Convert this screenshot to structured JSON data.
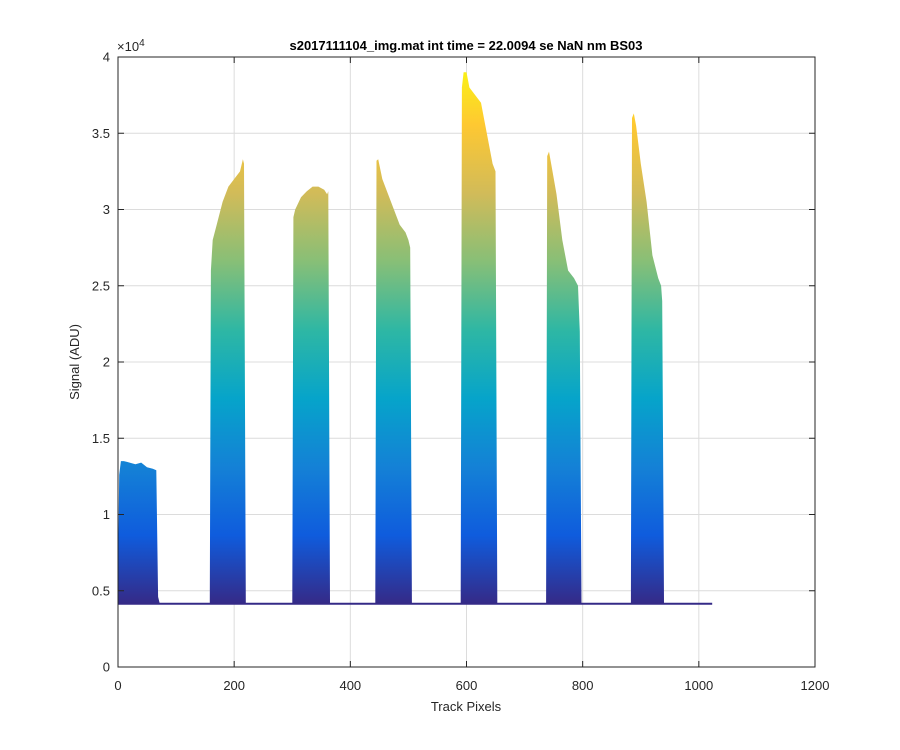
{
  "chart_data": {
    "type": "area",
    "title": "s2017111104_img.mat int time = 22.0094 se  NaN nm BS03",
    "xlabel": "Track Pixels",
    "ylabel": "Signal (ADU)",
    "xlim": [
      0,
      1200
    ],
    "ylim": [
      0,
      40000
    ],
    "xticks": [
      0,
      200,
      400,
      600,
      800,
      1000,
      1200
    ],
    "yticks": [
      0,
      5000,
      10000,
      15000,
      20000,
      25000,
      30000,
      35000,
      40000
    ],
    "xtick_labels": [
      "0",
      "200",
      "400",
      "600",
      "800",
      "1000",
      "1200"
    ],
    "ytick_labels": [
      "0",
      "0.5",
      "1",
      "1.5",
      "2",
      "2.5",
      "3",
      "3.5",
      "4"
    ],
    "y_exponent_label": "×10",
    "y_exponent_power": "4",
    "grid": true,
    "colormap": "parula",
    "colormap_stops": [
      "#352A87",
      "#0F5CDD",
      "#1481D6",
      "#06A4CA",
      "#2EB7A4",
      "#87BF77",
      "#D1BB59",
      "#FEC832",
      "#F9FB0E"
    ],
    "baseline": 4150,
    "series": [
      {
        "x": [
          0,
          2,
          5,
          10,
          20,
          30,
          40,
          50,
          60,
          66,
          69,
          72
        ],
        "y": [
          6000,
          12600,
          13500,
          13500,
          13400,
          13300,
          13400,
          13100,
          13000,
          12900,
          4600,
          4150
        ]
      },
      {
        "x": [
          158,
          160,
          163,
          170,
          180,
          190,
          200,
          210,
          215,
          217,
          220
        ],
        "y": [
          4400,
          26000,
          28000,
          29000,
          30500,
          31500,
          32000,
          32500,
          33300,
          33000,
          4300
        ]
      },
      {
        "x": [
          300,
          302,
          305,
          315,
          325,
          335,
          345,
          355,
          360,
          362,
          365
        ],
        "y": [
          4400,
          29500,
          30000,
          30800,
          31200,
          31500,
          31500,
          31300,
          31000,
          31200,
          4300
        ]
      },
      {
        "x": [
          443,
          445,
          448,
          455,
          465,
          475,
          485,
          495,
          500,
          503,
          506
        ],
        "y": [
          4400,
          33200,
          33300,
          32000,
          31000,
          30000,
          29000,
          28500,
          28000,
          27500,
          4300
        ]
      },
      {
        "x": [
          590,
          592,
          595,
          600,
          605,
          615,
          625,
          635,
          645,
          650,
          653
        ],
        "y": [
          4400,
          38000,
          39000,
          39000,
          38000,
          37500,
          37000,
          35000,
          33000,
          32500,
          4300
        ]
      },
      {
        "x": [
          737,
          739,
          742,
          748,
          755,
          765,
          775,
          785,
          792,
          795,
          798
        ],
        "y": [
          4300,
          33500,
          33800,
          32500,
          31000,
          28000,
          26000,
          25500,
          25000,
          22000,
          4250
        ]
      },
      {
        "x": [
          883,
          885,
          888,
          892,
          900,
          910,
          920,
          930,
          935,
          937,
          940
        ],
        "y": [
          4300,
          36000,
          36300,
          35500,
          33000,
          30500,
          27000,
          25500,
          25000,
          24000,
          4250
        ]
      }
    ]
  }
}
